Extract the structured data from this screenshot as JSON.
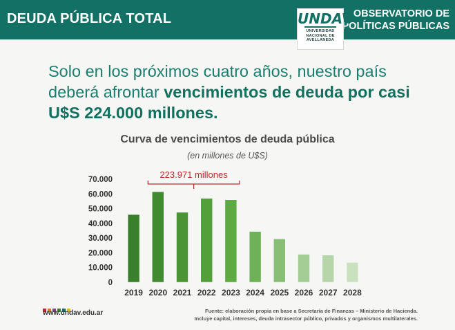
{
  "header": {
    "title": "DEUDA PÚBLICA TOTAL",
    "observatorio_line1": "OBSERVATORIO DE",
    "observatorio_line2": "POLÍTICAS PÚBLICAS",
    "logo_mark": "UNDAV",
    "logo_line1": "UNIVERSIDAD",
    "logo_line2": "NACIONAL DE",
    "logo_line3": "AVELLANEDA"
  },
  "headline": {
    "part1": "Solo en los próximos cuatro años, nuestro país deberá afrontar ",
    "part2": "vencimientos de deuda por casi U$S 224.000 millones."
  },
  "colors": {
    "header_bg": "#127065",
    "bar_colors": [
      "#3a7f2b",
      "#428a30",
      "#4a9436",
      "#53a03b",
      "#5da943",
      "#6fb157",
      "#89be77",
      "#a4cd96",
      "#b6d6aa",
      "#c9e1bf"
    ],
    "annotation": "#c0282b"
  },
  "chart_data": {
    "type": "bar",
    "title": "Curva de vencimientos de deuda pública",
    "subtitle": "(en millones de U$S)",
    "categories": [
      "2019",
      "2020",
      "2021",
      "2022",
      "2023",
      "2024",
      "2025",
      "2026",
      "2027",
      "2028"
    ],
    "values": [
      46000,
      61500,
      47500,
      57000,
      56000,
      34500,
      29500,
      19000,
      18500,
      13500
    ],
    "y_ticks": [
      "0",
      "10.000",
      "20.000",
      "30.000",
      "40.000",
      "50.000",
      "60.000",
      "70.000"
    ],
    "ylim": [
      0,
      70000
    ],
    "grid": false,
    "annotation": {
      "text": "223.971 millones",
      "spans": [
        "2020",
        "2023"
      ]
    }
  },
  "footer": {
    "url": "www.undav.edu.ar",
    "source_line1": "Fuente: elaboración propia en base a Secretaría de Finanzas – Ministerio de Hacienda.",
    "source_line2": "Incluye capital, intereses, deuda intrasector público, privados y organismos multilaterales.",
    "dot_colors": [
      "#c0282b",
      "#e07b2a",
      "#7c3f8c",
      "#3a7f2b",
      "#127065",
      "#e0b92a"
    ]
  }
}
